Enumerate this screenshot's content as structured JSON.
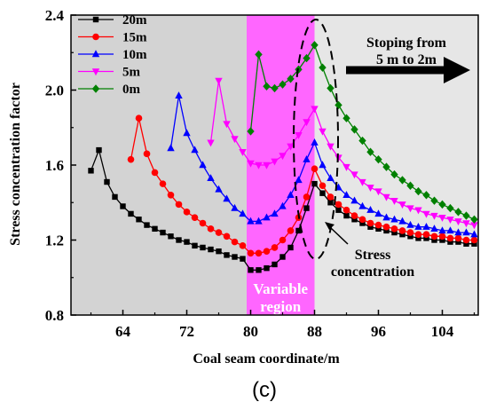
{
  "chart_data": {
    "type": "line",
    "xlabel": "Coal seam coordinate/m",
    "ylabel": "Stress concentration factor",
    "xlim": [
      57.5,
      108.5
    ],
    "ylim": [
      0.8,
      2.4
    ],
    "xticks": [
      64,
      72,
      80,
      88,
      96,
      104
    ],
    "yticks": [
      0.8,
      1.2,
      1.6,
      2.0,
      2.4
    ],
    "tick_labels_x": [
      "64",
      "72",
      "80",
      "88",
      "96",
      "104"
    ],
    "tick_labels_y": [
      "0.8",
      "1.2",
      "1.6",
      "2.0",
      "2.4"
    ],
    "legend_position": "top-left",
    "grid": false,
    "panel_label": "(c)",
    "regions": [
      {
        "x0": 57.5,
        "x1": 79.5,
        "color": "#d3d3d3"
      },
      {
        "x0": 79.5,
        "x1": 88,
        "color": "#ff66ff",
        "label_lines": [
          "Variable",
          "region"
        ]
      },
      {
        "x0": 88,
        "x1": 108.5,
        "color": "#e6e6e6"
      }
    ],
    "annotations": {
      "stoping": [
        "Stoping from",
        "5 m to 2m"
      ],
      "stress": [
        "Stress",
        "concentration"
      ]
    },
    "series": [
      {
        "name": "20m",
        "color": "#000000",
        "marker": "square",
        "x": [
          60,
          61,
          62,
          63,
          64,
          65,
          66,
          67,
          68,
          69,
          70,
          71,
          72,
          73,
          74,
          75,
          76,
          77,
          78,
          79,
          80,
          81,
          82,
          83,
          84,
          85,
          86,
          87,
          88,
          89,
          90,
          91,
          92,
          93,
          94,
          95,
          96,
          97,
          98,
          99,
          100,
          101,
          102,
          103,
          104,
          105,
          106,
          107,
          108
        ],
        "y": [
          1.57,
          1.68,
          1.51,
          1.43,
          1.38,
          1.34,
          1.31,
          1.28,
          1.26,
          1.24,
          1.22,
          1.2,
          1.19,
          1.17,
          1.16,
          1.15,
          1.14,
          1.12,
          1.11,
          1.1,
          1.04,
          1.04,
          1.05,
          1.07,
          1.11,
          1.16,
          1.25,
          1.37,
          1.5,
          1.45,
          1.4,
          1.36,
          1.33,
          1.31,
          1.29,
          1.27,
          1.26,
          1.25,
          1.24,
          1.23,
          1.22,
          1.21,
          1.21,
          1.2,
          1.2,
          1.19,
          1.19,
          1.18,
          1.18
        ]
      },
      {
        "name": "15m",
        "color": "#ff0000",
        "marker": "circle",
        "x": [
          65,
          66,
          67,
          68,
          69,
          70,
          71,
          72,
          73,
          74,
          75,
          76,
          77,
          78,
          79,
          80,
          81,
          82,
          83,
          84,
          85,
          86,
          87,
          88,
          89,
          90,
          91,
          92,
          93,
          94,
          95,
          96,
          97,
          98,
          99,
          100,
          101,
          102,
          103,
          104,
          105,
          106,
          107,
          108
        ],
        "y": [
          1.63,
          1.85,
          1.66,
          1.56,
          1.5,
          1.44,
          1.39,
          1.35,
          1.32,
          1.29,
          1.26,
          1.24,
          1.22,
          1.19,
          1.17,
          1.13,
          1.13,
          1.14,
          1.16,
          1.2,
          1.25,
          1.32,
          1.43,
          1.58,
          1.49,
          1.43,
          1.39,
          1.36,
          1.33,
          1.31,
          1.29,
          1.28,
          1.27,
          1.26,
          1.25,
          1.24,
          1.23,
          1.23,
          1.22,
          1.22,
          1.21,
          1.21,
          1.2,
          1.2
        ]
      },
      {
        "name": "10m",
        "color": "#0000ff",
        "marker": "triangle-up",
        "x": [
          70,
          71,
          72,
          73,
          74,
          75,
          76,
          77,
          78,
          79,
          80,
          81,
          82,
          83,
          84,
          85,
          86,
          87,
          88,
          89,
          90,
          91,
          92,
          93,
          94,
          95,
          96,
          97,
          98,
          99,
          100,
          101,
          102,
          103,
          104,
          105,
          106,
          107,
          108
        ],
        "y": [
          1.69,
          1.97,
          1.77,
          1.68,
          1.6,
          1.53,
          1.47,
          1.42,
          1.37,
          1.34,
          1.3,
          1.3,
          1.32,
          1.34,
          1.38,
          1.44,
          1.52,
          1.63,
          1.72,
          1.6,
          1.53,
          1.48,
          1.44,
          1.41,
          1.38,
          1.36,
          1.34,
          1.32,
          1.31,
          1.3,
          1.28,
          1.27,
          1.27,
          1.26,
          1.25,
          1.25,
          1.24,
          1.24,
          1.23
        ]
      },
      {
        "name": "5m",
        "color": "#ff00ff",
        "marker": "triangle-down",
        "x": [
          75,
          76,
          77,
          78,
          79,
          80,
          81,
          82,
          83,
          84,
          85,
          86,
          87,
          88,
          89,
          90,
          91,
          92,
          93,
          94,
          95,
          96,
          97,
          98,
          99,
          100,
          101,
          102,
          103,
          104,
          105,
          106,
          107,
          108
        ],
        "y": [
          1.72,
          2.05,
          1.82,
          1.74,
          1.67,
          1.61,
          1.6,
          1.6,
          1.62,
          1.65,
          1.7,
          1.76,
          1.83,
          1.9,
          1.78,
          1.7,
          1.64,
          1.59,
          1.55,
          1.51,
          1.48,
          1.46,
          1.43,
          1.41,
          1.39,
          1.37,
          1.36,
          1.34,
          1.33,
          1.32,
          1.31,
          1.3,
          1.29,
          1.28
        ]
      },
      {
        "name": "0m",
        "color": "#008000",
        "marker": "diamond",
        "x": [
          80,
          81,
          82,
          83,
          84,
          85,
          86,
          87,
          88,
          89,
          90,
          91,
          92,
          93,
          94,
          95,
          96,
          97,
          98,
          99,
          100,
          101,
          102,
          103,
          104,
          105,
          106,
          107,
          108
        ],
        "y": [
          1.78,
          2.19,
          2.02,
          2.01,
          2.03,
          2.06,
          2.11,
          2.17,
          2.24,
          2.12,
          2.01,
          1.92,
          1.85,
          1.79,
          1.73,
          1.67,
          1.63,
          1.59,
          1.55,
          1.52,
          1.49,
          1.46,
          1.44,
          1.41,
          1.39,
          1.37,
          1.35,
          1.33,
          1.31
        ]
      }
    ]
  }
}
